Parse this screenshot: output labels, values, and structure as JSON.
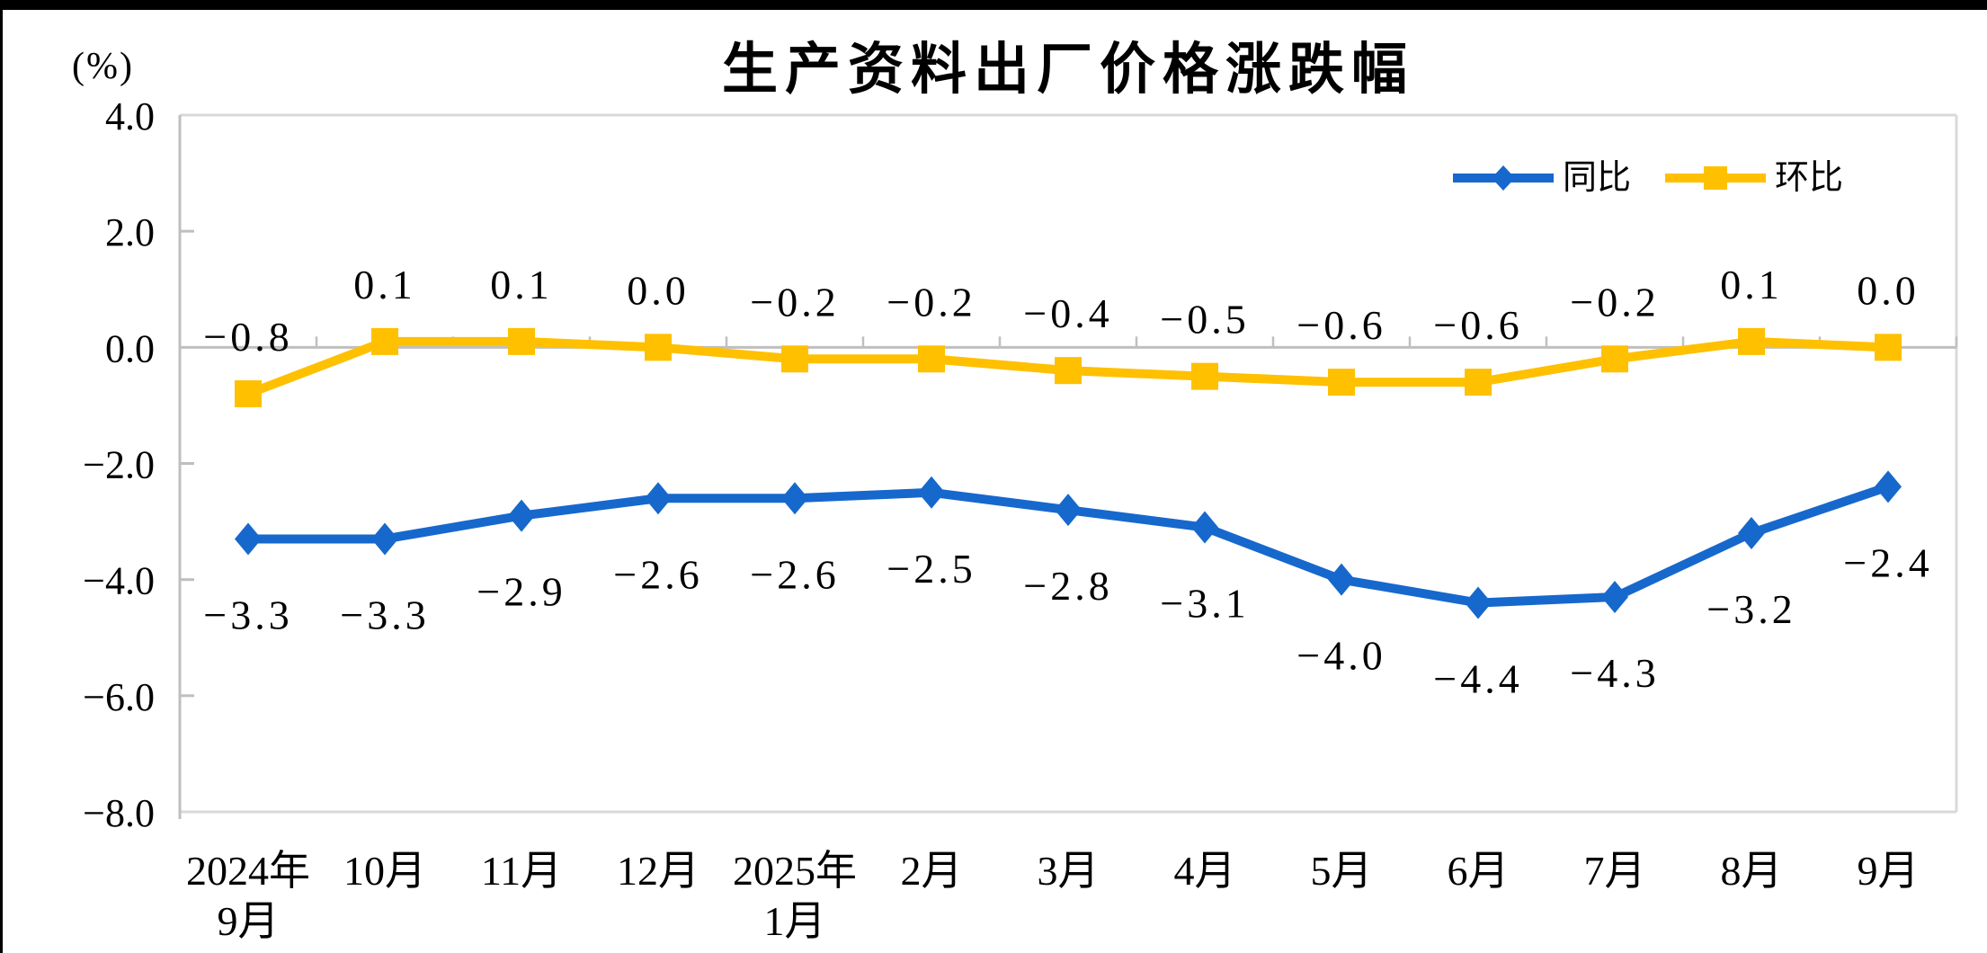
{
  "window": {
    "background": "#FFFFFF",
    "border_color": "#000000"
  },
  "chart_data": {
    "type": "line",
    "title": "生产资料出厂价格涨跌幅",
    "unit_label": "(%)",
    "legend": {
      "position": "top-right",
      "items": [
        "同比",
        "环比"
      ]
    },
    "categories": [
      [
        "2024年",
        "9月"
      ],
      [
        "10月"
      ],
      [
        "11月"
      ],
      [
        "12月"
      ],
      [
        "2025年",
        "1月"
      ],
      [
        "2月"
      ],
      [
        "3月"
      ],
      [
        "4月"
      ],
      [
        "5月"
      ],
      [
        "6月"
      ],
      [
        "7月"
      ],
      [
        "8月"
      ],
      [
        "9月"
      ]
    ],
    "series": [
      {
        "name": "同比",
        "color": "#1668CC",
        "marker": "diamond",
        "label_position": "below",
        "values": [
          -3.3,
          -3.3,
          -2.9,
          -2.6,
          -2.6,
          -2.5,
          -2.8,
          -3.1,
          -4.0,
          -4.4,
          -4.3,
          -3.2,
          -2.4
        ],
        "labels": [
          "−3.3",
          "−3.3",
          "−2.9",
          "−2.6",
          "−2.6",
          "−2.5",
          "−2.8",
          "−3.1",
          "−4.0",
          "−4.4",
          "−4.3",
          "−3.2",
          "−2.4"
        ]
      },
      {
        "name": "环比",
        "color": "#FFC000",
        "marker": "square",
        "label_position": "above",
        "values": [
          -0.8,
          0.1,
          0.1,
          0.0,
          -0.2,
          -0.2,
          -0.4,
          -0.5,
          -0.6,
          -0.6,
          -0.2,
          0.1,
          0.0
        ],
        "labels": [
          "−0.8",
          "0.1",
          "0.1",
          "0.0",
          "−0.2",
          "−0.2",
          "−0.4",
          "−0.5",
          "−0.6",
          "−0.6",
          "−0.2",
          "0.1",
          "0.0"
        ]
      }
    ],
    "y_axis": {
      "min": -8,
      "max": 4,
      "step": 2,
      "tick_values": [
        4,
        2,
        0,
        -2,
        -4,
        -6,
        -8
      ],
      "tick_labels": [
        "4.0",
        "2.0",
        "0.0",
        "−2.0",
        "−4.0",
        "−6.0",
        "−8.0"
      ]
    },
    "x_axis": {
      "tick_marks": "category boundaries on zero line"
    },
    "grid": "zero-line-only",
    "colors": {
      "axis": "#BFBFBF",
      "plot_border": "#D9D9D9",
      "text": "#000000"
    }
  }
}
